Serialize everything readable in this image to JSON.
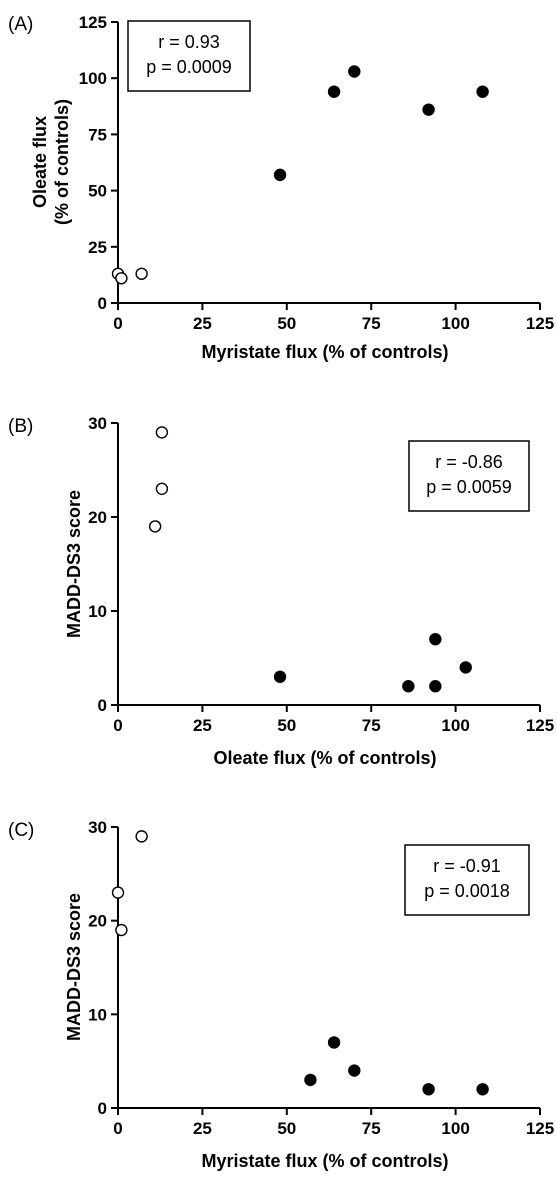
{
  "chart_data": [
    {
      "type": "scatter",
      "panel_label": "(A)",
      "xlabel": "Myristate flux (% of controls)",
      "ylabel_lines": [
        "Oleate flux",
        "(% of controls)"
      ],
      "xlim": [
        0,
        125
      ],
      "ylim": [
        0,
        125
      ],
      "xticks": [
        0,
        25,
        50,
        75,
        100,
        125
      ],
      "yticks": [
        0,
        25,
        50,
        75,
        100,
        125
      ],
      "annotation": [
        "r = 0.93",
        "p = 0.0009"
      ],
      "annotation_position": "top-left",
      "series": [
        {
          "marker": "open",
          "x": [
            0,
            1,
            7
          ],
          "y": [
            13,
            11,
            13
          ]
        },
        {
          "marker": "filled",
          "x": [
            48,
            64,
            70,
            92,
            108
          ],
          "y": [
            57,
            94,
            103,
            86,
            94
          ]
        }
      ]
    },
    {
      "type": "scatter",
      "panel_label": "(B)",
      "xlabel": "Oleate flux (% of controls)",
      "ylabel_lines": [
        "MADD-DS3 score"
      ],
      "xlim": [
        0,
        125
      ],
      "ylim": [
        0,
        30
      ],
      "xticks": [
        0,
        25,
        50,
        75,
        100,
        125
      ],
      "yticks": [
        0,
        10,
        20,
        30
      ],
      "annotation": [
        "r = -0.86",
        "p = 0.0059"
      ],
      "annotation_position": "top-right",
      "series": [
        {
          "marker": "open",
          "x": [
            11,
            13,
            13
          ],
          "y": [
            19,
            23,
            29
          ]
        },
        {
          "marker": "filled",
          "x": [
            48,
            86,
            94,
            94,
            103
          ],
          "y": [
            3,
            2,
            2,
            7,
            4
          ]
        }
      ]
    },
    {
      "type": "scatter",
      "panel_label": "(C)",
      "xlabel": "Myristate flux (% of controls)",
      "ylabel_lines": [
        "MADD-DS3 score"
      ],
      "xlim": [
        0,
        125
      ],
      "ylim": [
        0,
        30
      ],
      "xticks": [
        0,
        25,
        50,
        75,
        100,
        125
      ],
      "yticks": [
        0,
        10,
        20,
        30
      ],
      "annotation": [
        "r = -0.91",
        "p = 0.0018"
      ],
      "annotation_position": "top-right",
      "series": [
        {
          "marker": "open",
          "x": [
            0,
            1,
            7
          ],
          "y": [
            23,
            19,
            29
          ]
        },
        {
          "marker": "filled",
          "x": [
            57,
            64,
            70,
            92,
            108
          ],
          "y": [
            3,
            7,
            4,
            2,
            2
          ]
        }
      ]
    }
  ]
}
